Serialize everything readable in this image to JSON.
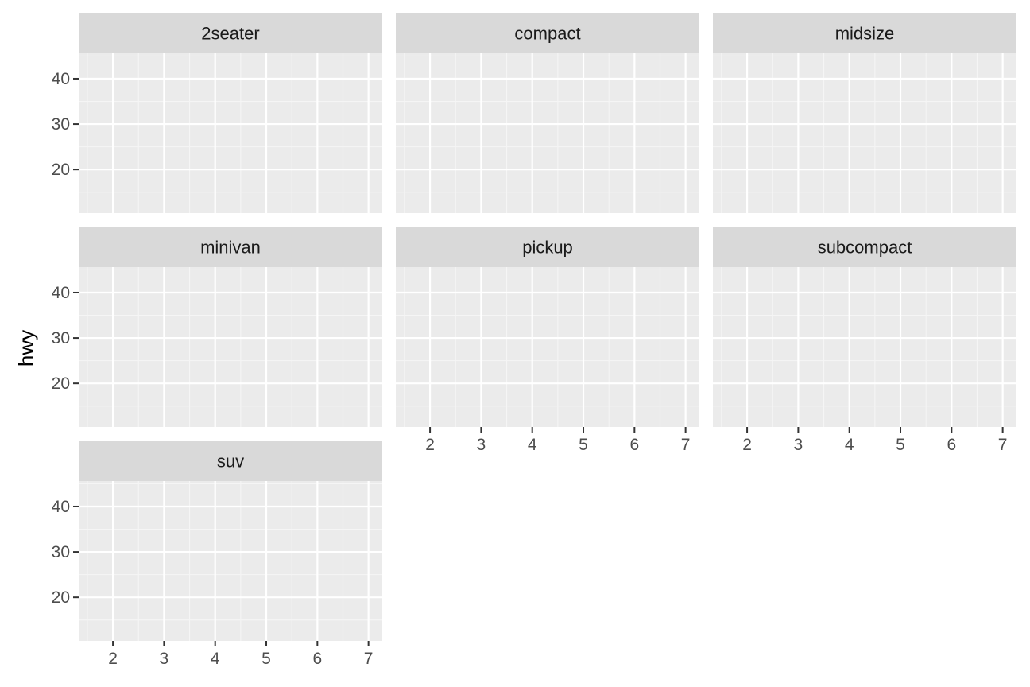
{
  "chart_data": {
    "type": "scatter",
    "ylabel": "hwy",
    "xlabel": "",
    "xlim": [
      1.33,
      7.27
    ],
    "ylim": [
      10.4,
      45.6
    ],
    "x_ticks": [
      2,
      3,
      4,
      5,
      6,
      7
    ],
    "x_tick_labels": [
      "2",
      "3",
      "4",
      "5",
      "6",
      "7"
    ],
    "y_ticks": [
      20,
      30,
      40
    ],
    "y_tick_labels": [
      "20",
      "30",
      "40"
    ],
    "grid": true,
    "facets": [
      {
        "label": "2seater",
        "show_x_axis": false,
        "show_y_axis": true,
        "points": []
      },
      {
        "label": "compact",
        "show_x_axis": false,
        "show_y_axis": false,
        "points": []
      },
      {
        "label": "midsize",
        "show_x_axis": false,
        "show_y_axis": false,
        "points": []
      },
      {
        "label": "minivan",
        "show_x_axis": false,
        "show_y_axis": true,
        "points": []
      },
      {
        "label": "pickup",
        "show_x_axis": true,
        "show_y_axis": false,
        "points": []
      },
      {
        "label": "subcompact",
        "show_x_axis": true,
        "show_y_axis": false,
        "points": []
      },
      {
        "label": "suv",
        "show_x_axis": true,
        "show_y_axis": true,
        "points": []
      }
    ],
    "colors": {
      "panel_background": "#ebebeb",
      "strip_background": "#d9d9d9",
      "grid_major": "#ffffff",
      "grid_minor": "#f5f5f5",
      "tick_mark": "#333333"
    }
  }
}
